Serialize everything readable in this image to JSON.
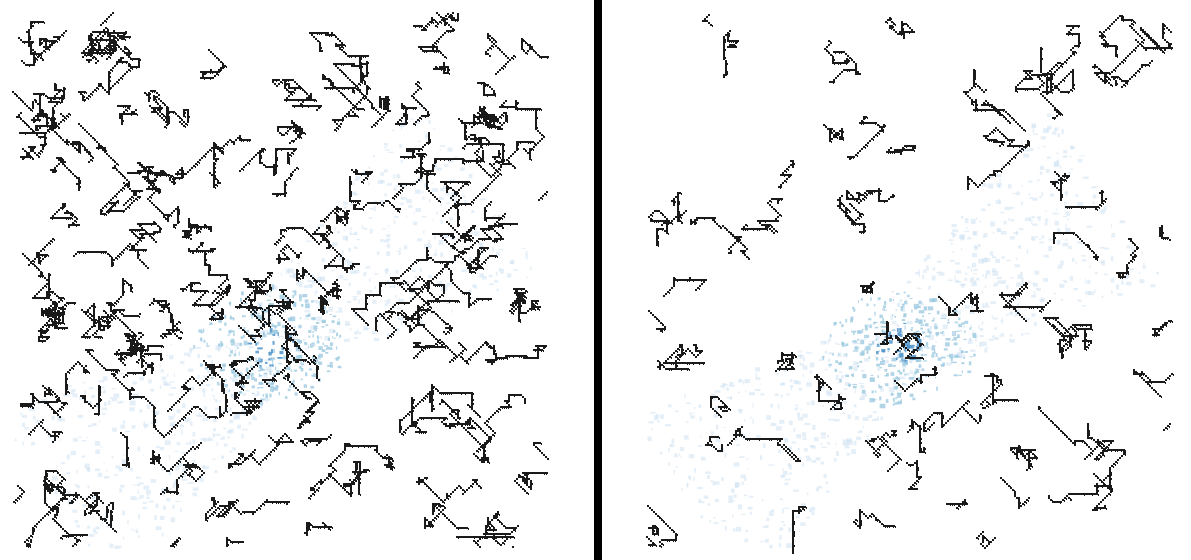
{
  "colors": {
    "background": "#ffffff",
    "divider": "#000000",
    "urban_fill_light": "#cfe1f2",
    "urban_fill_mid": "#9ecae1",
    "urban_fill_dark": "#4a90c8",
    "boundary_pixels": "#1a1a1a"
  },
  "panels": [
    {
      "name": "left-map",
      "description_visible": false
    },
    {
      "name": "right-map",
      "description_visible": false
    }
  ]
}
